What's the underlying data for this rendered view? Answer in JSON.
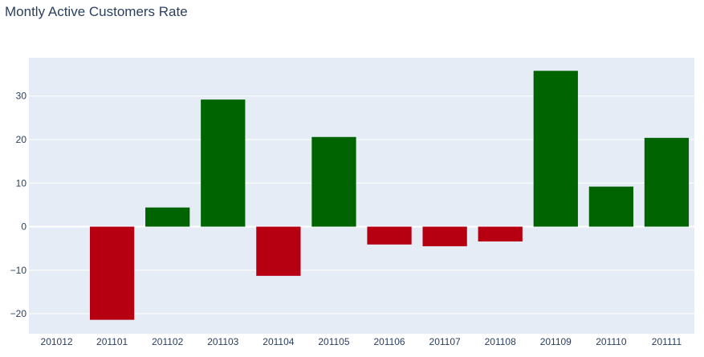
{
  "chart_data": {
    "type": "bar",
    "title": "Montly Active Customers Rate",
    "xlabel": "",
    "ylabel": "",
    "categories": [
      "201012",
      "201101",
      "201102",
      "201103",
      "201104",
      "201105",
      "201106",
      "201107",
      "201108",
      "201109",
      "201110",
      "201111"
    ],
    "values": [
      0,
      -21.4,
      4.4,
      29.2,
      -11.3,
      20.6,
      -4.1,
      -4.5,
      -3.4,
      35.8,
      9.2,
      20.4
    ],
    "ylim": [
      -24.6,
      38.8
    ],
    "yticks": [
      -20,
      -10,
      0,
      10,
      20,
      30
    ],
    "grid": true,
    "legend": "none",
    "colors": {
      "positive": "#006400",
      "negative": "#b60012",
      "plot_bg": "#e5ecf6",
      "grid": "#ffffff",
      "text": "#2a3f5f"
    }
  }
}
